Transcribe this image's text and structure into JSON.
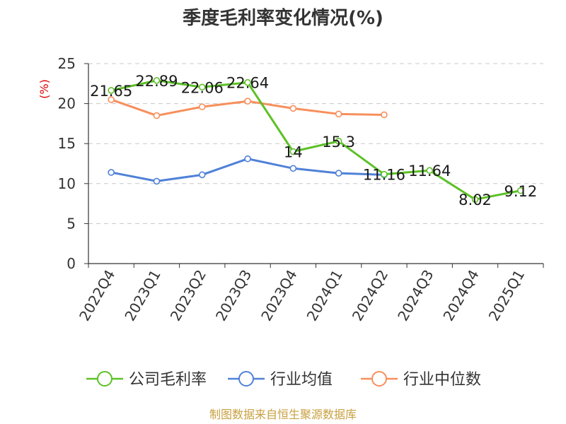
{
  "title": "季度毛利率变化情况(%)",
  "source": "制图数据来自恒生聚源数据库",
  "chart_data": {
    "type": "line",
    "unit_label": "(%)",
    "categories": [
      "2022Q4",
      "2023Q1",
      "2023Q2",
      "2023Q3",
      "2023Q4",
      "2024Q1",
      "2024Q2",
      "2024Q3",
      "2024Q4",
      "2025Q1"
    ],
    "ylim": [
      0,
      25
    ],
    "yticks": [
      0,
      5,
      10,
      15,
      20,
      25
    ],
    "grid": true,
    "legend_position": "bottom",
    "series": [
      {
        "name": "公司毛利率",
        "color": "#5cc126",
        "values": [
          21.65,
          22.89,
          22.06,
          22.64,
          14,
          15.3,
          11.16,
          11.64,
          8.02,
          9.12
        ],
        "labels": [
          "21.65",
          "22.89",
          "22.06",
          "22.64",
          "14",
          "15.3",
          "11.16",
          "11.64",
          "8.02",
          "9.12"
        ]
      },
      {
        "name": "行业均值",
        "color": "#4f81d8",
        "values": [
          11.4,
          10.3,
          11.1,
          13.1,
          11.9,
          11.3,
          11.1,
          null,
          null,
          null
        ]
      },
      {
        "name": "行业中位数",
        "color": "#f78f5c",
        "values": [
          20.5,
          18.5,
          19.6,
          20.3,
          19.4,
          18.7,
          18.6,
          null,
          null,
          null
        ]
      }
    ]
  }
}
